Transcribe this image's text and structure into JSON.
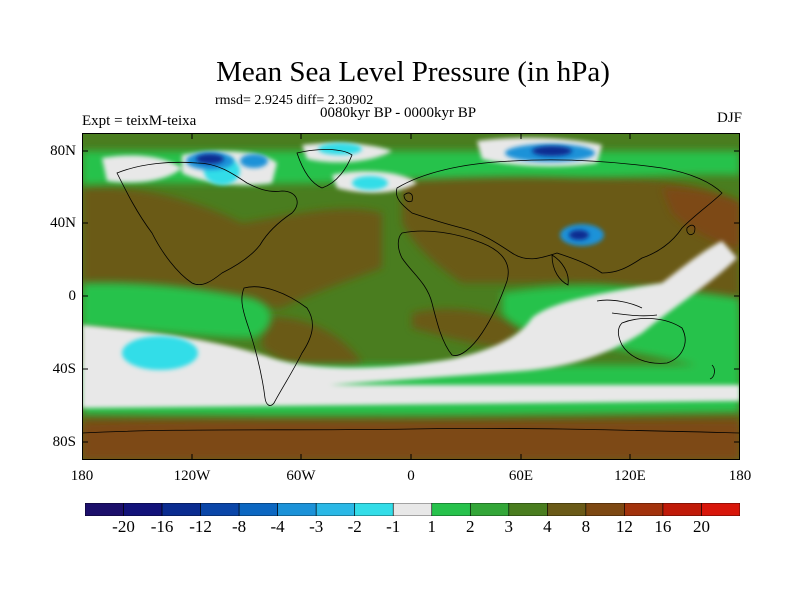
{
  "figure": {
    "title": "Mean Sea Level Pressure (in hPa)",
    "stats": "rmsd= 2.9245 diff= 2.30902",
    "period": "0080kyr BP - 0000kyr BP",
    "experiment": "Expt = teixM-teixa",
    "season": "DJF"
  },
  "axes": {
    "y_ticks": [
      "80N",
      "40N",
      "0",
      "40S",
      "80S"
    ],
    "x_ticks": [
      "180",
      "120W",
      "60W",
      "0",
      "60E",
      "120E",
      "180"
    ]
  },
  "colorbar": {
    "labels": [
      "-20",
      "-16",
      "-12",
      "-8",
      "-4",
      "-3",
      "-2",
      "-1",
      "1",
      "2",
      "3",
      "4",
      "8",
      "12",
      "16",
      "20"
    ],
    "colors": [
      "#1c0f6b",
      "#12127a",
      "#0b2c90",
      "#0a46a8",
      "#0c67c1",
      "#1c92d8",
      "#2ab8e6",
      "#33dde8",
      "#e8e8e8",
      "#27c24c",
      "#33a638",
      "#4a7d1f",
      "#6a5a18",
      "#7d4812",
      "#a2320c",
      "#c01a08",
      "#d8160a"
    ]
  },
  "colors": {
    "land_outline": "#000000",
    "background": "#ffffff"
  }
}
